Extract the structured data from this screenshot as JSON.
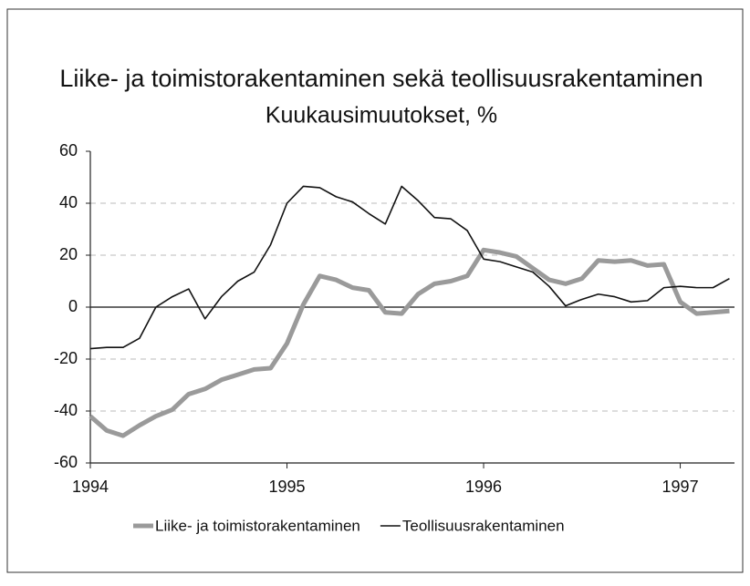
{
  "chart_data": {
    "type": "line",
    "title": "Liike- ja toimistorakentaminen sekä teollisuusrakentaminen",
    "subtitle": "Kuukausimuutokset, %",
    "categories": [
      "1994",
      null,
      null,
      null,
      null,
      null,
      null,
      null,
      null,
      null,
      null,
      null,
      "1995",
      null,
      null,
      null,
      null,
      null,
      null,
      null,
      null,
      null,
      null,
      null,
      "1996",
      null,
      null,
      null,
      null,
      null,
      null,
      null,
      null,
      null,
      null,
      null,
      "1997",
      null,
      null,
      null
    ],
    "series": [
      {
        "name": "Liike- ja toimistorakentaminen",
        "color": "#9a9a9a",
        "values": [
          -42,
          -47.5,
          -49.5,
          -45.5,
          -42,
          -39.5,
          -33.5,
          -31.5,
          -28,
          -26,
          -24,
          -23.5,
          -14,
          1,
          12,
          10.5,
          7.5,
          6.5,
          -2,
          -2.5,
          5,
          9,
          10,
          12,
          22,
          21,
          19.5,
          15,
          10.5,
          9,
          11,
          18,
          17.5,
          18,
          16,
          16.5,
          2,
          -2.5,
          -2,
          -1.5
        ]
      },
      {
        "name": "Teollisuusrakentaminen",
        "color": "#111111",
        "values": [
          -16,
          -15.5,
          -15.5,
          -12,
          0,
          4,
          7,
          -4.5,
          4,
          10,
          13.5,
          24,
          40,
          46.5,
          46,
          42.5,
          40.5,
          36,
          32,
          46.5,
          41,
          34.5,
          34,
          29.5,
          18.5,
          17.5,
          15.5,
          13.5,
          8,
          0.5,
          3,
          5,
          4,
          2,
          2.5,
          7.5,
          8,
          7.5,
          7.5,
          11
        ]
      }
    ],
    "ylim": [
      -60,
      60
    ],
    "yticks": [
      -60,
      -40,
      -20,
      0,
      20,
      40,
      60
    ],
    "grid": true
  }
}
